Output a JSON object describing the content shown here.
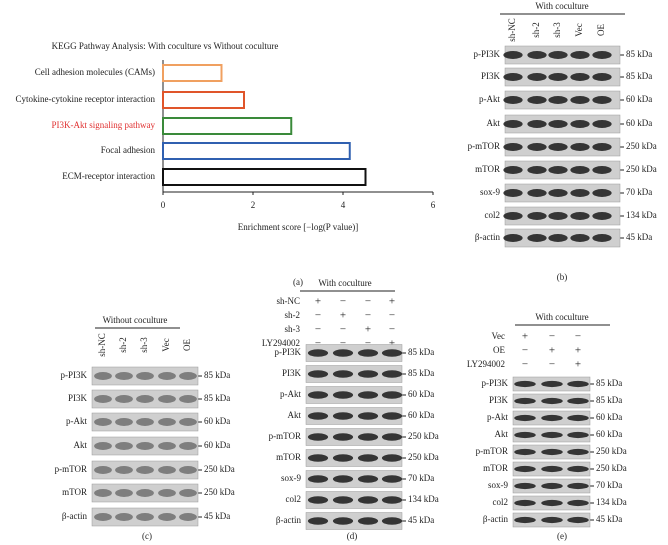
{
  "chart_data": {
    "type": "bar",
    "orientation": "horizontal",
    "title": "KEGG Pathway Analysis: With coculture vs Without coculture",
    "categories": [
      "Cell adhesion molecules (CAMs)",
      "Cytokine-cytokine receptor interaction",
      "PI3K-Akt signaling pathway",
      "Focal adhesion",
      "ECM-receptor interaction"
    ],
    "values": [
      1.3,
      1.8,
      2.85,
      4.15,
      4.5
    ],
    "colors": [
      "#f0a060",
      "#e0552a",
      "#3a8a3a",
      "#3060b0",
      "#111111"
    ],
    "category_colors": [
      "#222222",
      "#222222",
      "#e03030",
      "#222222",
      "#222222"
    ],
    "bar_style": "outline",
    "xlabel": "Enrichment score [−log(P value)]",
    "xlim": [
      0,
      6
    ],
    "xticks": [
      0,
      2,
      4,
      6
    ],
    "label": "(a)"
  },
  "panels": {
    "b": {
      "header": "With coculture",
      "columns": [
        "sh-NC",
        "sh-2",
        "sh-3",
        "Vec",
        "OE"
      ],
      "rows": [
        {
          "protein": "p-PI3K",
          "size": "85 kDa"
        },
        {
          "protein": "PI3K",
          "size": "85 kDa"
        },
        {
          "protein": "p-Akt",
          "size": "60 kDa"
        },
        {
          "protein": "Akt",
          "size": "60 kDa"
        },
        {
          "protein": "p-mTOR",
          "size": "250 kDa"
        },
        {
          "protein": "mTOR",
          "size": "250 kDa"
        },
        {
          "protein": "sox-9",
          "size": "70 kDa"
        },
        {
          "protein": "col2",
          "size": "134 kDa"
        },
        {
          "protein": "β-actin",
          "size": "45 kDa"
        }
      ],
      "label": "(b)"
    },
    "c": {
      "header": "Without coculture",
      "columns": [
        "sh-NC",
        "sh-2",
        "sh-3",
        "Vec",
        "OE"
      ],
      "rows": [
        {
          "protein": "p-PI3K",
          "size": "85 kDa"
        },
        {
          "protein": "PI3K",
          "size": "85 kDa"
        },
        {
          "protein": "p-Akt",
          "size": "60 kDa"
        },
        {
          "protein": "Akt",
          "size": "60 kDa"
        },
        {
          "protein": "p-mTOR",
          "size": "250 kDa"
        },
        {
          "protein": "mTOR",
          "size": "250 kDa"
        },
        {
          "protein": "β-actin",
          "size": "45 kDa"
        }
      ],
      "label": "(c)"
    },
    "d": {
      "header": "With coculture",
      "conditions": [
        {
          "name": "sh-NC",
          "signs": [
            "+",
            "−",
            "−",
            "+"
          ]
        },
        {
          "name": "sh-2",
          "signs": [
            "−",
            "+",
            "−",
            "−"
          ]
        },
        {
          "name": "sh-3",
          "signs": [
            "−",
            "−",
            "+",
            "−"
          ]
        },
        {
          "name": "LY294002",
          "signs": [
            "−",
            "−",
            "−",
            "+"
          ]
        }
      ],
      "rows": [
        {
          "protein": "p-PI3K",
          "size": "85 kDa"
        },
        {
          "protein": "PI3K",
          "size": "85 kDa"
        },
        {
          "protein": "p-Akt",
          "size": "60 kDa"
        },
        {
          "protein": "Akt",
          "size": "60 kDa"
        },
        {
          "protein": "p-mTOR",
          "size": "250 kDa"
        },
        {
          "protein": "mTOR",
          "size": "250 kDa"
        },
        {
          "protein": "sox-9",
          "size": "70 kDa"
        },
        {
          "protein": "col2",
          "size": "134 kDa"
        },
        {
          "protein": "β-actin",
          "size": "45 kDa"
        }
      ],
      "label": "(d)"
    },
    "e": {
      "header": "With coculture",
      "conditions": [
        {
          "name": "Vec",
          "signs": [
            "+",
            "−",
            "−"
          ]
        },
        {
          "name": "OE",
          "signs": [
            "−",
            "+",
            "+"
          ]
        },
        {
          "name": "LY294002",
          "signs": [
            "−",
            "−",
            "+"
          ]
        }
      ],
      "rows": [
        {
          "protein": "p-PI3K",
          "size": "85 kDa"
        },
        {
          "protein": "PI3K",
          "size": "85 kDa"
        },
        {
          "protein": "p-Akt",
          "size": "60 kDa"
        },
        {
          "protein": "Akt",
          "size": "60 kDa"
        },
        {
          "protein": "p-mTOR",
          "size": "250 kDa"
        },
        {
          "protein": "mTOR",
          "size": "250 kDa"
        },
        {
          "protein": "sox-9",
          "size": "70 kDa"
        },
        {
          "protein": "col2",
          "size": "134 kDa"
        },
        {
          "protein": "β-actin",
          "size": "45 kDa"
        }
      ],
      "label": "(e)"
    }
  }
}
